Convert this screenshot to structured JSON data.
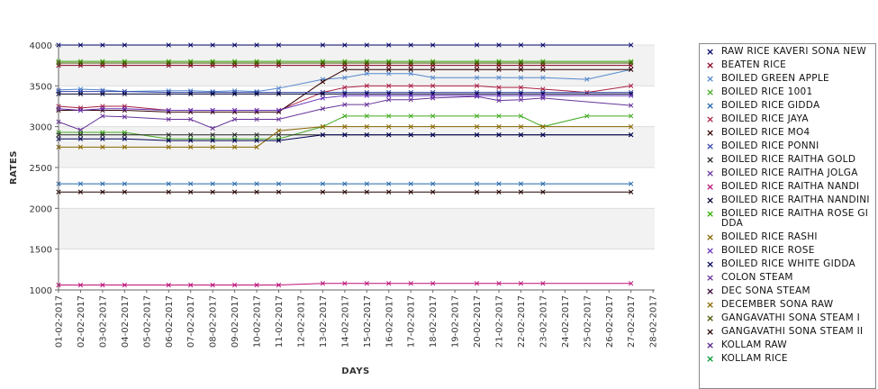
{
  "chart_data": {
    "type": "line",
    "xlabel": "DAYS",
    "ylabel": "RATES",
    "ylim": [
      1000,
      4000
    ],
    "yticks": [
      1000,
      1500,
      2000,
      2500,
      3000,
      3500,
      4000
    ],
    "x": [
      "01-02-2017",
      "02-02-2017",
      "03-02-2017",
      "04-02-2017",
      "05-02-2017",
      "06-02-2017",
      "07-02-2017",
      "08-02-2017",
      "09-02-2017",
      "10-02-2017",
      "11-02-2017",
      "12-02-2017",
      "13-02-2017",
      "14-02-2017",
      "15-02-2017",
      "16-02-2017",
      "17-02-2017",
      "18-02-2017",
      "19-02-2017",
      "20-02-2017",
      "21-02-2017",
      "22-02-2017",
      "23-02-2017",
      "24-02-2017",
      "25-02-2017",
      "26-02-2017",
      "27-02-2017",
      "28-02-2017"
    ],
    "legend_position": "right",
    "series": [
      {
        "name": " RAW RICE KAVERI SONA NEW",
        "color": "#000066",
        "values": [
          4000,
          4000,
          4000,
          4000,
          null,
          4000,
          4000,
          4000,
          4000,
          4000,
          4000,
          null,
          4000,
          4000,
          4000,
          4000,
          4000,
          4000,
          null,
          4000,
          4000,
          4000,
          4000,
          null,
          null,
          null,
          4000,
          null
        ]
      },
      {
        "name": "BEATEN RICE",
        "color": "#880022",
        "values": [
          3750,
          3750,
          3750,
          3750,
          null,
          3750,
          3750,
          3750,
          3750,
          3750,
          3750,
          null,
          3750,
          3750,
          3750,
          3750,
          3750,
          3750,
          null,
          3750,
          3750,
          3750,
          3750,
          null,
          null,
          null,
          3750,
          null
        ]
      },
      {
        "name": "BOILED GREEN APPLE",
        "color": "#5588cc",
        "values": [
          3450,
          3460,
          3450,
          3430,
          null,
          3440,
          3440,
          3430,
          3440,
          3430,
          3470,
          null,
          3580,
          3600,
          3650,
          3650,
          3650,
          3600,
          null,
          3600,
          3600,
          3600,
          3600,
          null,
          3580,
          null,
          3700,
          null
        ]
      },
      {
        "name": "BOILED RICE 1001",
        "color": "#44aa22",
        "values": [
          2930,
          2930,
          2930,
          2930,
          null,
          2850,
          2850,
          2850,
          2850,
          2850,
          2850,
          null,
          3000,
          3130,
          3130,
          3130,
          3130,
          3130,
          null,
          3130,
          3130,
          3130,
          3000,
          null,
          3130,
          null,
          3130,
          null
        ]
      },
      {
        "name": "BOILED RICE GIDDA",
        "color": "#2266aa",
        "values": [
          2300,
          2300,
          2300,
          2300,
          null,
          2300,
          2300,
          2300,
          2300,
          2300,
          2300,
          null,
          2300,
          2300,
          2300,
          2300,
          2300,
          2300,
          null,
          2300,
          2300,
          2300,
          2300,
          null,
          null,
          null,
          2300,
          null
        ]
      },
      {
        "name": "BOILED RICE JAYA",
        "color": "#aa2244",
        "values": [
          3250,
          3230,
          3250,
          3250,
          null,
          3200,
          3200,
          3200,
          3200,
          3200,
          3200,
          null,
          3420,
          3480,
          3500,
          3500,
          3500,
          3500,
          null,
          3500,
          3480,
          3480,
          3460,
          null,
          3420,
          null,
          3500,
          null
        ]
      },
      {
        "name": "BOILED RICE MO4",
        "color": "#330000",
        "values": [
          3200,
          3200,
          3200,
          3200,
          null,
          3180,
          3180,
          3180,
          3180,
          3180,
          3180,
          null,
          3550,
          3700,
          3700,
          3700,
          3700,
          3700,
          null,
          3700,
          3700,
          3700,
          3700,
          null,
          null,
          null,
          3700,
          null
        ]
      },
      {
        "name": "BOILED RICE PONNI",
        "color": "#3344aa",
        "values": [
          3430,
          3430,
          3430,
          3430,
          null,
          3420,
          3420,
          3420,
          3420,
          3420,
          3420,
          null,
          3420,
          3420,
          3420,
          3420,
          3420,
          3420,
          null,
          3420,
          3420,
          3420,
          3420,
          null,
          null,
          null,
          3420,
          null
        ]
      },
      {
        "name": "BOILED RICE RAITHA GOLD",
        "color": "#222222",
        "values": [
          2900,
          2900,
          2900,
          2900,
          null,
          2900,
          2900,
          2900,
          2900,
          2900,
          2900,
          null,
          2900,
          2900,
          2900,
          2900,
          2900,
          2900,
          null,
          2900,
          2900,
          2900,
          2900,
          null,
          null,
          null,
          2900,
          null
        ]
      },
      {
        "name": "BOILED RICE RAITHA JOLGA",
        "color": "#663399",
        "values": [
          3060,
          2960,
          3130,
          3120,
          null,
          3090,
          3090,
          2980,
          3090,
          3090,
          3090,
          null,
          3220,
          3270,
          3270,
          3330,
          3330,
          3350,
          null,
          3370,
          3320,
          3330,
          3350,
          null,
          null,
          null,
          3260,
          null
        ]
      },
      {
        "name": "BOILED RICE RAITHA NANDI",
        "color": "#bb1177",
        "values": [
          1060,
          1060,
          1060,
          1060,
          null,
          1060,
          1060,
          1060,
          1060,
          1060,
          1060,
          null,
          1080,
          1080,
          1080,
          1080,
          1080,
          1080,
          null,
          1080,
          1080,
          1080,
          1080,
          null,
          null,
          null,
          1080,
          null
        ]
      },
      {
        "name": "BOILED RICE RAITHA NANDINI",
        "color": "#000033",
        "values": [
          3400,
          3400,
          3400,
          3400,
          null,
          3400,
          3400,
          3400,
          3400,
          3400,
          3400,
          null,
          3400,
          3400,
          3400,
          3400,
          3400,
          3400,
          null,
          3400,
          3400,
          3400,
          3400,
          null,
          null,
          null,
          3400,
          null
        ]
      },
      {
        "name": "BOILED RICE RAITHA ROSE GIDDA",
        "color": "#33aa00",
        "values": [
          3800,
          3800,
          3800,
          3800,
          null,
          3800,
          3800,
          3800,
          3800,
          3800,
          3800,
          null,
          3800,
          3800,
          3800,
          3800,
          3800,
          3800,
          null,
          3800,
          3800,
          3800,
          3800,
          null,
          null,
          null,
          3800,
          null
        ]
      },
      {
        "name": "BOILED RICE RASHI",
        "color": "#886600",
        "values": [
          2750,
          2750,
          2750,
          2750,
          null,
          2750,
          2750,
          2750,
          2750,
          2750,
          2950,
          null,
          3000,
          3000,
          3000,
          3000,
          3000,
          3000,
          null,
          3000,
          3000,
          3000,
          3000,
          null,
          null,
          null,
          3000,
          null
        ]
      },
      {
        "name": "BOILED RICE ROSE",
        "color": "#6633bb",
        "values": [
          3220,
          3200,
          3220,
          3220,
          null,
          3200,
          3200,
          3200,
          3200,
          3200,
          3200,
          null,
          3350,
          3380,
          3380,
          3380,
          3380,
          3380,
          null,
          3380,
          3380,
          3380,
          3380,
          null,
          null,
          null,
          3380,
          null
        ]
      },
      {
        "name": "BOILED RICE WHITE GIDDA",
        "color": "#000055",
        "values": [
          2850,
          2850,
          2850,
          2850,
          null,
          2830,
          2830,
          2830,
          2830,
          2830,
          2830,
          null,
          2900,
          2900,
          2900,
          2900,
          2900,
          2900,
          null,
          2900,
          2900,
          2900,
          2900,
          null,
          null,
          null,
          2900,
          null
        ]
      },
      {
        "name": "COLON STEAM",
        "color": "#663399",
        "values": [
          null,
          null,
          null,
          null,
          null,
          null,
          null,
          null,
          null,
          null,
          null,
          null,
          null,
          null,
          null,
          null,
          null,
          null,
          null,
          null,
          null,
          null,
          null,
          null,
          null,
          null,
          null,
          null
        ]
      },
      {
        "name": "DEC SONA STEAM",
        "color": "#330033",
        "values": [
          null,
          null,
          null,
          null,
          null,
          null,
          null,
          null,
          null,
          null,
          null,
          null,
          null,
          null,
          null,
          null,
          null,
          null,
          null,
          null,
          null,
          null,
          null,
          null,
          null,
          null,
          null,
          null
        ]
      },
      {
        "name": "DECEMBER SONA RAW",
        "color": "#886600",
        "values": [
          null,
          null,
          null,
          null,
          null,
          null,
          null,
          null,
          null,
          null,
          null,
          null,
          null,
          null,
          null,
          null,
          null,
          null,
          null,
          null,
          null,
          null,
          null,
          null,
          null,
          null,
          null,
          null
        ]
      },
      {
        "name": "GANGAVATHI SONA STEAM I",
        "color": "#445500",
        "values": [
          3780,
          3780,
          3780,
          3780,
          null,
          3780,
          3780,
          3780,
          3780,
          3780,
          3780,
          null,
          3780,
          3780,
          3780,
          3780,
          3780,
          3780,
          null,
          3780,
          3780,
          3780,
          3780,
          null,
          null,
          null,
          3780,
          null
        ]
      },
      {
        "name": "GANGAVATHI SONA STEAM II",
        "color": "#220000",
        "values": [
          2200,
          2200,
          2200,
          2200,
          null,
          2200,
          2200,
          2200,
          2200,
          2200,
          2200,
          null,
          2200,
          2200,
          2200,
          2200,
          2200,
          2200,
          null,
          2200,
          2200,
          2200,
          2200,
          null,
          null,
          null,
          2200,
          null
        ]
      },
      {
        "name": "KOLLAM RAW",
        "color": "#552288",
        "values": [
          null,
          null,
          null,
          null,
          null,
          null,
          null,
          null,
          null,
          null,
          null,
          null,
          null,
          null,
          null,
          null,
          null,
          null,
          null,
          null,
          null,
          null,
          null,
          null,
          null,
          null,
          null,
          null
        ]
      },
      {
        "name": "KOLLAM RICE",
        "color": "#009933",
        "values": [
          null,
          null,
          null,
          null,
          null,
          null,
          null,
          null,
          null,
          null,
          null,
          null,
          null,
          null,
          null,
          null,
          null,
          null,
          null,
          null,
          null,
          null,
          null,
          null,
          null,
          null,
          null,
          null
        ]
      }
    ]
  }
}
